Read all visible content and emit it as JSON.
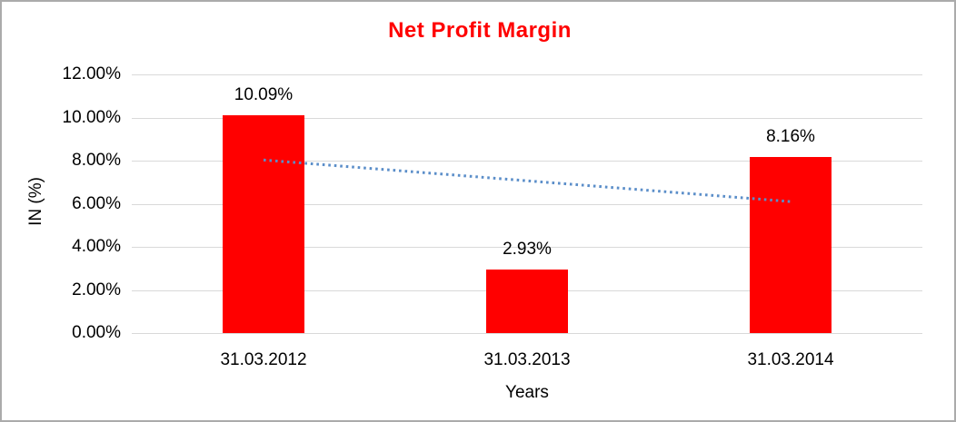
{
  "chart_data": {
    "type": "bar",
    "title": "Net Profit Margin",
    "categories": [
      "31.03.2012",
      "31.03.2013",
      "31.03.2014"
    ],
    "values": [
      10.09,
      2.93,
      8.16
    ],
    "data_labels": [
      "10.09%",
      "2.93%",
      "8.16%"
    ],
    "xlabel": "Years",
    "ylabel": "IN (%)",
    "ylim": [
      0,
      12
    ],
    "ytick_step": 2,
    "ytick_labels": [
      "0.00%",
      "2.00%",
      "4.00%",
      "6.00%",
      "8.00%",
      "10.00%",
      "12.00%"
    ],
    "grid": true,
    "legend": "none",
    "trendline": {
      "type": "linear",
      "style": "dotted",
      "start_value_pct": 8.03,
      "end_value_pct": 6.1,
      "color": "#5b8ec9"
    },
    "colors": {
      "bar": "#ff0000",
      "title": "#ff0000",
      "gridline": "#d9d9d9",
      "text": "#000000",
      "background": "#ffffff",
      "frame_border": "#ababab"
    }
  }
}
